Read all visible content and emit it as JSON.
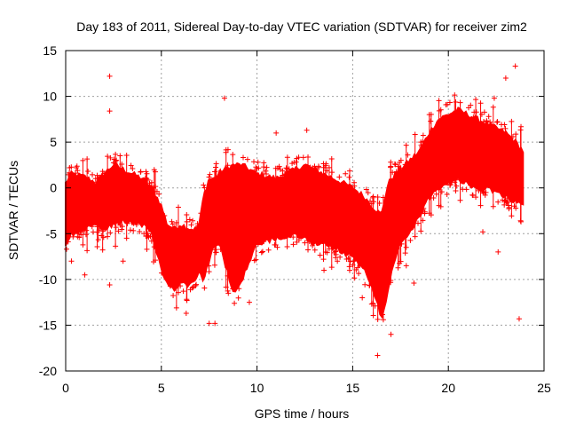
{
  "chart_data": {
    "type": "scatter",
    "title": "Day 183 of 2011, Sidereal Day-to-day VTEC variation (SDTVAR) for receiver zim2",
    "xlabel": "GPS time / hours",
    "ylabel": "SDTVAR / TECUs",
    "xlim": [
      0,
      25
    ],
    "ylim": [
      -20,
      15
    ],
    "xticks": [
      0,
      5,
      10,
      15,
      20,
      25
    ],
    "yticks": [
      -20,
      -15,
      -10,
      -5,
      0,
      5,
      10,
      15
    ],
    "grid": true,
    "marker": "+",
    "color": "#ff0000",
    "x_data_range": [
      0,
      23.9
    ],
    "envelope": {
      "x": [
        0.0,
        0.3,
        1.0,
        1.6,
        2.0,
        2.5,
        3.0,
        4.0,
        4.5,
        5.0,
        5.3,
        5.7,
        6.0,
        6.5,
        6.8,
        7.0,
        7.2,
        7.5,
        7.8,
        8.0,
        8.3,
        8.8,
        9.2,
        9.6,
        10.0,
        11.0,
        12.0,
        12.5,
        13.0,
        14.0,
        15.0,
        15.6,
        16.0,
        16.5,
        16.8,
        17.0,
        17.5,
        18.0,
        18.5,
        19.0,
        19.5,
        20.0,
        20.5,
        21.0,
        21.5,
        22.0,
        22.5,
        23.0,
        23.5,
        23.9
      ],
      "upper": [
        0.5,
        1.5,
        1.2,
        0.5,
        1.5,
        2.5,
        2.0,
        1.0,
        0.0,
        -2.0,
        -4.0,
        -4.5,
        -4.0,
        -4.5,
        -4.5,
        -4.0,
        -1.0,
        1.0,
        1.0,
        1.5,
        2.0,
        2.5,
        2.5,
        2.0,
        1.5,
        1.0,
        2.0,
        2.5,
        2.0,
        1.0,
        0.0,
        -1.0,
        -2.0,
        -3.0,
        0.0,
        1.0,
        2.0,
        3.0,
        4.0,
        6.0,
        7.5,
        8.0,
        8.5,
        8.0,
        7.5,
        7.0,
        6.5,
        6.0,
        5.0,
        4.0
      ],
      "lower": [
        -6.5,
        -5.0,
        -4.5,
        -4.0,
        -4.5,
        -4.0,
        -3.5,
        -4.0,
        -5.0,
        -9.0,
        -10.5,
        -11.0,
        -10.5,
        -10.5,
        -10.0,
        -9.0,
        -10.0,
        -8.0,
        -6.0,
        -6.0,
        -8.0,
        -11.5,
        -10.0,
        -8.0,
        -6.0,
        -5.5,
        -5.0,
        -5.5,
        -6.0,
        -6.5,
        -7.5,
        -9.0,
        -11.0,
        -14.0,
        -12.0,
        -9.0,
        -6.0,
        -5.0,
        -3.0,
        -1.0,
        0.0,
        0.5,
        1.0,
        0.5,
        0.0,
        0.0,
        -0.5,
        -1.0,
        -1.5,
        -2.0
      ]
    },
    "outliers": [
      [
        2.3,
        12.2
      ],
      [
        2.3,
        8.4
      ],
      [
        8.3,
        9.8
      ],
      [
        23.5,
        13.3
      ],
      [
        23.0,
        12.0
      ],
      [
        22.4,
        9.8
      ],
      [
        23.7,
        -14.3
      ],
      [
        16.3,
        -18.3
      ],
      [
        17.0,
        -16.0
      ],
      [
        6.3,
        -13.7
      ],
      [
        7.5,
        -14.8
      ],
      [
        7.8,
        -14.8
      ],
      [
        2.3,
        -10.6
      ],
      [
        18.2,
        -10.4
      ],
      [
        22.6,
        -7.0
      ],
      [
        21.8,
        -4.8
      ],
      [
        11.0,
        6.0
      ],
      [
        12.6,
        6.3
      ],
      [
        0.3,
        -8.0
      ],
      [
        1.0,
        -9.5
      ],
      [
        8.5,
        -11.5
      ],
      [
        0.2,
        2.2
      ],
      [
        17.8,
        -8.5
      ],
      [
        15.5,
        -12.0
      ],
      [
        9.6,
        -12.5
      ],
      [
        13.5,
        -9.0
      ],
      [
        14.2,
        -8.0
      ],
      [
        3.0,
        -8.0
      ]
    ]
  }
}
